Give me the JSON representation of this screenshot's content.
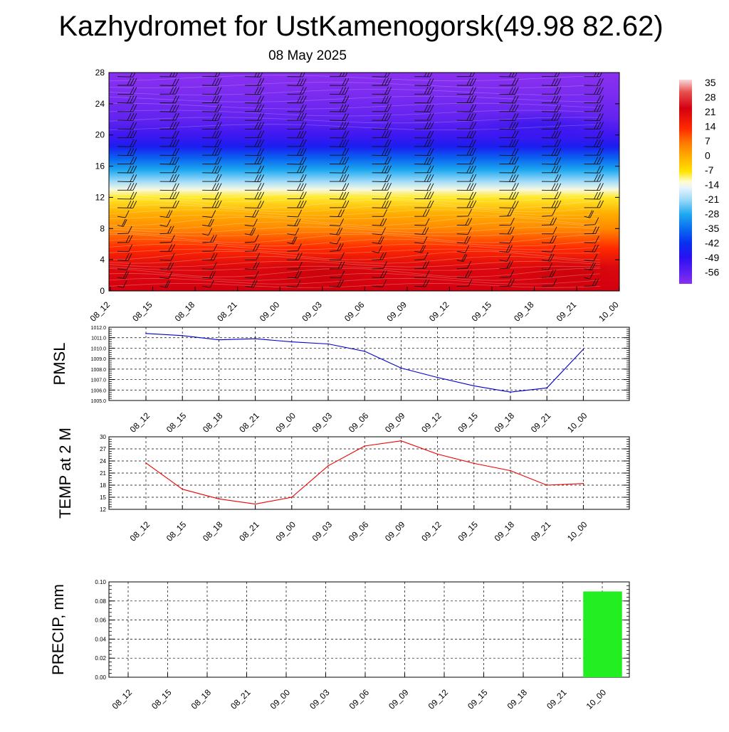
{
  "title": "Kazhydromet for UstKamenogorsk(49.98 82.62)",
  "subtitle": "08 May 2025",
  "time_labels": [
    "08_12",
    "08_15",
    "08_18",
    "08_21",
    "09_00",
    "09_03",
    "09_06",
    "09_09",
    "09_12",
    "09_15",
    "09_18",
    "09_21",
    "10_00"
  ],
  "colorbar": {
    "labels": [
      "35",
      "28",
      "21",
      "14",
      "7",
      "0",
      "-7",
      "-14",
      "-21",
      "-28",
      "-35",
      "-42",
      "-49",
      "-56"
    ],
    "stops": [
      {
        "value": 38,
        "color": "#f8d8d8"
      },
      {
        "value": 32,
        "color": "#e85050"
      },
      {
        "value": 24,
        "color": "#d40010"
      },
      {
        "value": 14,
        "color": "#ff2a00"
      },
      {
        "value": 7,
        "color": "#ff7a00"
      },
      {
        "value": 0,
        "color": "#ffb000"
      },
      {
        "value": -7,
        "color": "#ffe400"
      },
      {
        "value": -12,
        "color": "#fffcd0"
      },
      {
        "value": -15,
        "color": "#e8f4ff"
      },
      {
        "value": -21,
        "color": "#98d8f8"
      },
      {
        "value": -28,
        "color": "#1ea8f0"
      },
      {
        "value": -35,
        "color": "#0a6cf0"
      },
      {
        "value": -42,
        "color": "#0830f0"
      },
      {
        "value": -49,
        "color": "#2a10f2"
      },
      {
        "value": -56,
        "color": "#5a20f0"
      },
      {
        "value": -62,
        "color": "#8a30f0"
      }
    ]
  },
  "chart_data": [
    {
      "type": "heatmap",
      "name": "temperature cross-section",
      "x": [
        "08_12",
        "08_15",
        "08_18",
        "08_21",
        "09_00",
        "09_03",
        "09_06",
        "09_09",
        "09_12",
        "09_15",
        "09_18",
        "09_21",
        "10_00"
      ],
      "y_ticks": [
        0,
        4,
        8,
        12,
        16,
        20,
        24,
        28
      ],
      "ylim": [
        0,
        28
      ],
      "profile": [
        {
          "y": 0,
          "value": 24
        },
        {
          "y": 3,
          "value": 22
        },
        {
          "y": 5.5,
          "value": 14
        },
        {
          "y": 8,
          "value": 5
        },
        {
          "y": 10,
          "value": 0
        },
        {
          "y": 12,
          "value": -8
        },
        {
          "y": 13,
          "value": -13
        },
        {
          "y": 14,
          "value": -20
        },
        {
          "y": 15.5,
          "value": -28
        },
        {
          "y": 17,
          "value": -36
        },
        {
          "y": 18.5,
          "value": -46
        },
        {
          "y": 20,
          "value": -52
        },
        {
          "y": 22,
          "value": -57
        },
        {
          "y": 25,
          "value": -60
        },
        {
          "y": 28,
          "value": -62
        }
      ],
      "colorbar_labels": [
        "35",
        "28",
        "21",
        "14",
        "7",
        "0",
        "-7",
        "-14",
        "-21",
        "-28",
        "-35",
        "-42",
        "-49",
        "-56"
      ]
    },
    {
      "type": "line",
      "ylabel": "PMSL",
      "categories": [
        "08_12",
        "08_15",
        "08_18",
        "08_21",
        "09_00",
        "09_03",
        "09_06",
        "09_09",
        "09_12",
        "09_15",
        "09_18",
        "09_21",
        "10_00"
      ],
      "values": [
        1011.4,
        1011.2,
        1010.8,
        1010.9,
        1010.6,
        1010.4,
        1009.7,
        1008.1,
        1007.2,
        1006.4,
        1005.8,
        1006.2,
        1009.9
      ],
      "ylim": [
        1005.0,
        1012.0
      ],
      "y_ticks": [
        "1005.0",
        "1006.0",
        "1007.0",
        "1008.0",
        "1009.0",
        "1010.0",
        "1011.0",
        "1012.0"
      ],
      "color": "#0000cc",
      "grid": true
    },
    {
      "type": "line",
      "ylabel": "TEMP at 2 M",
      "categories": [
        "08_12",
        "08_15",
        "08_18",
        "08_21",
        "09_00",
        "09_03",
        "09_06",
        "09_09",
        "09_12",
        "09_15",
        "09_18",
        "09_21",
        "10_00"
      ],
      "values": [
        23.5,
        17.0,
        14.6,
        13.3,
        15.0,
        22.8,
        27.7,
        29.0,
        25.7,
        23.4,
        21.6,
        18.0,
        18.4
      ],
      "ylim": [
        12,
        30
      ],
      "y_ticks": [
        "12",
        "15",
        "18",
        "21",
        "24",
        "27",
        "30"
      ],
      "color": "#ee0000",
      "grid": true
    },
    {
      "type": "bar",
      "ylabel": "PRECIP, mm",
      "categories": [
        "08_12",
        "08_15",
        "08_18",
        "08_21",
        "09_00",
        "09_03",
        "09_06",
        "09_09",
        "09_12",
        "09_15",
        "09_18",
        "09_21",
        "10_00"
      ],
      "values": [
        0,
        0,
        0,
        0,
        0,
        0,
        0,
        0,
        0,
        0,
        0,
        0,
        0.09
      ],
      "ylim": [
        0,
        0.1
      ],
      "y_ticks": [
        "0.00",
        "0.02",
        "0.04",
        "0.06",
        "0.08",
        "0.10"
      ],
      "color": "#22ee22",
      "grid": true
    }
  ]
}
